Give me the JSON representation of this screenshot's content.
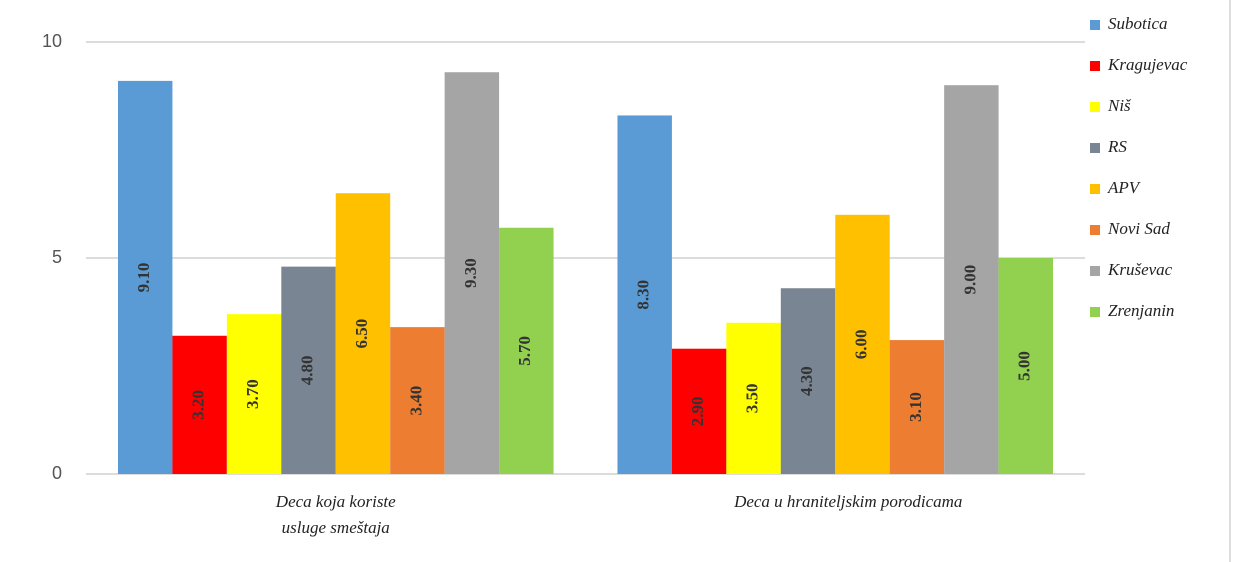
{
  "chart_data": {
    "type": "bar",
    "categories": [
      "Deca koja koriste\nusluge smeštaja",
      "Deca u hraniteljskim porodicama"
    ],
    "series": [
      {
        "name": "Subotica",
        "color": "#5b9bd5",
        "values": [
          9.1,
          8.3
        ],
        "value_labels": [
          "9.10",
          "8.30"
        ]
      },
      {
        "name": "Kragujevac",
        "color": "#ff0000",
        "values": [
          3.2,
          2.9
        ],
        "value_labels": [
          "3.20",
          "2.90"
        ]
      },
      {
        "name": "Niš",
        "color": "#ffff00",
        "values": [
          3.7,
          3.5
        ],
        "value_labels": [
          "3.70",
          "3.50"
        ]
      },
      {
        "name": "RS",
        "color": "#7a8593",
        "values": [
          4.8,
          4.3
        ],
        "value_labels": [
          "4.80",
          "4.30"
        ]
      },
      {
        "name": "APV",
        "color": "#ffc000",
        "values": [
          6.5,
          6.0
        ],
        "value_labels": [
          "6.50",
          "6.00"
        ]
      },
      {
        "name": "Novi Sad",
        "color": "#ed7d31",
        "values": [
          3.4,
          3.1
        ],
        "value_labels": [
          "3.40",
          "3.10"
        ]
      },
      {
        "name": "Kruševac",
        "color": "#a5a5a5",
        "values": [
          9.3,
          9.0
        ],
        "value_labels": [
          "9.30",
          "9.00"
        ]
      },
      {
        "name": "Zrenjanin",
        "color": "#92d050",
        "values": [
          5.7,
          5.0
        ],
        "value_labels": [
          "5.70",
          "5.00"
        ]
      }
    ],
    "ylim": [
      0,
      10
    ],
    "yticks": [
      0,
      5,
      10
    ],
    "grid": true,
    "legend": "right"
  }
}
